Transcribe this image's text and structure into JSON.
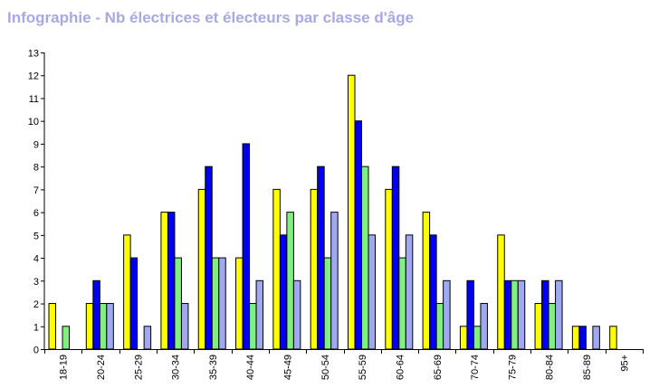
{
  "window_title": "Infographie - Nb électrices et électeurs par classe d'âge",
  "chart_data": {
    "type": "bar",
    "title": "Infographie - Nb électrices et électeurs par classe d'âge",
    "xlabel": "",
    "ylabel": "",
    "ylim": [
      0,
      13
    ],
    "yticks": [
      "0",
      "1",
      "2",
      "3",
      "4",
      "5",
      "6",
      "7",
      "8",
      "9",
      "10",
      "11",
      "12",
      "13"
    ],
    "grid": false,
    "legend": "none",
    "categories": [
      "18-19",
      "20-24",
      "25-29",
      "30-34",
      "35-39",
      "40-44",
      "45-49",
      "50-54",
      "55-59",
      "60-64",
      "65-69",
      "70-74",
      "75-79",
      "80-84",
      "85-89",
      "95+"
    ],
    "series": [
      {
        "color": "#ffff00",
        "values": [
          2,
          2,
          5,
          6,
          7,
          4,
          7,
          7,
          12,
          7,
          6,
          1,
          5,
          2,
          1,
          1
        ]
      },
      {
        "color": "#0000ee",
        "values": [
          0,
          3,
          4,
          6,
          8,
          9,
          5,
          8,
          10,
          8,
          5,
          3,
          3,
          3,
          1,
          0
        ]
      },
      {
        "color": "#80f080",
        "values": [
          1,
          2,
          0,
          4,
          4,
          2,
          6,
          4,
          8,
          4,
          2,
          1,
          3,
          2,
          0,
          0
        ]
      },
      {
        "color": "#a0a8f0",
        "values": [
          0,
          2,
          1,
          2,
          4,
          3,
          3,
          6,
          5,
          5,
          3,
          2,
          3,
          3,
          1,
          0
        ]
      }
    ]
  }
}
